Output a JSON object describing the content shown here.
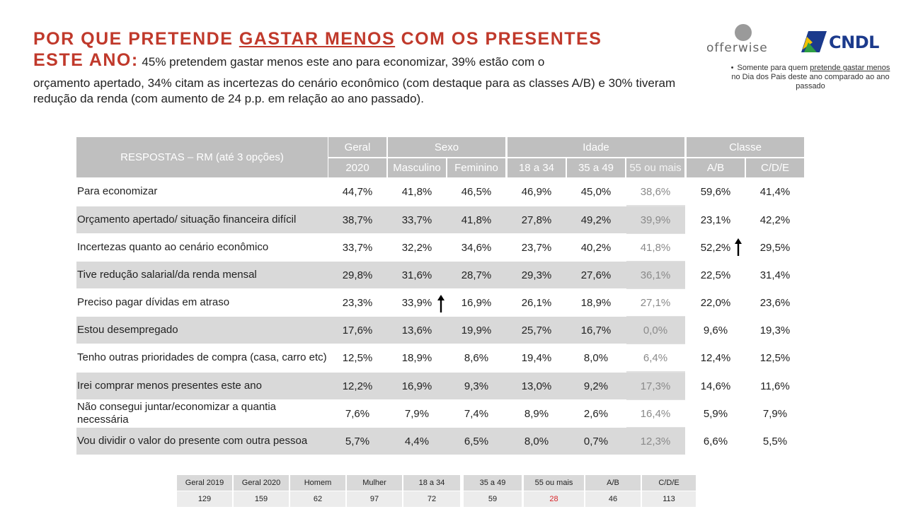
{
  "title": {
    "part1": "POR QUE PRETENDE ",
    "part_underlined": "GASTAR MENOS",
    "part2": " COM OS PRESENTES",
    "line2_bold": "ESTE ANO:",
    "line2_text": " 45% pretendem gastar menos este ano para economizar, 39% estão com o",
    "rest": "orçamento apertado, 34% citam as incertezas do cenário econômico (com destaque para as classes A/B) e 30% tiveram redução da renda (com aumento de 24 p.p. em relação ao ano passado)."
  },
  "logos": {
    "offerwise": "offerwise",
    "cndl": "CNDL"
  },
  "note": {
    "bullet": "•",
    "pre": "Somente para quem ",
    "underlined": "pretende gastar menos",
    "post": " no Dia dos Pais deste ano comparado ao ano passado"
  },
  "table": {
    "respostas_header": "RESPOSTAS – RM (até 3 opções)",
    "groups": [
      "Geral",
      "Sexo",
      "Idade",
      "Classe"
    ],
    "columns": [
      "2020",
      "Masculino",
      "Feminino",
      "18 a 34",
      "35 a 49",
      "55 ou mais",
      "A/B",
      "C/D/E"
    ],
    "rows": [
      {
        "label": "Para economizar",
        "values": [
          "44,7%",
          "41,8%",
          "46,5%",
          "46,9%",
          "45,0%",
          "38,6%",
          "59,6%",
          "41,4%"
        ]
      },
      {
        "label": "Orçamento apertado/ situação financeira difícil",
        "values": [
          "38,7%",
          "33,7%",
          "41,8%",
          "27,8%",
          "49,2%",
          "39,9%",
          "23,1%",
          "42,2%"
        ]
      },
      {
        "label": "Incertezas quanto ao cenário econômico",
        "values": [
          "33,7%",
          "32,2%",
          "34,6%",
          "23,7%",
          "40,2%",
          "41,8%",
          "52,2%",
          "29,5%"
        ]
      },
      {
        "label": "Tive redução salarial/da renda mensal",
        "values": [
          "29,8%",
          "31,6%",
          "28,7%",
          "29,3%",
          "27,6%",
          "36,1%",
          "22,5%",
          "31,4%"
        ]
      },
      {
        "label": "Preciso pagar dívidas em atraso",
        "values": [
          "23,3%",
          "33,9%",
          "16,9%",
          "26,1%",
          "18,9%",
          "27,1%",
          "22,0%",
          "23,6%"
        ]
      },
      {
        "label": "Estou desempregado",
        "values": [
          "17,6%",
          "13,6%",
          "19,9%",
          "25,7%",
          "16,7%",
          "0,0%",
          "9,6%",
          "19,3%"
        ]
      },
      {
        "label": "Tenho outras prioridades de compra (casa, carro etc)",
        "values": [
          "12,5%",
          "18,9%",
          "8,6%",
          "19,4%",
          "8,0%",
          "6,4%",
          "12,4%",
          "12,5%"
        ]
      },
      {
        "label": "Irei comprar menos presentes este ano",
        "values": [
          "12,2%",
          "16,9%",
          "9,3%",
          "13,0%",
          "9,2%",
          "17,3%",
          "14,6%",
          "11,6%"
        ]
      },
      {
        "label": "Não consegui juntar/economizar a quantia necessária",
        "values": [
          "7,6%",
          "7,9%",
          "7,4%",
          "8,9%",
          "2,6%",
          "16,4%",
          "5,9%",
          "7,9%"
        ]
      },
      {
        "label": "Vou dividir o valor do presente com outra pessoa",
        "values": [
          "5,7%",
          "4,4%",
          "6,5%",
          "8,0%",
          "0,7%",
          "12,3%",
          "6,6%",
          "5,5%"
        ]
      }
    ]
  },
  "base_table": {
    "headers": [
      "Geral 2019",
      "Geral 2020",
      "Homem",
      "Mulher",
      "18 a 34",
      "35 a 49",
      "55 ou mais",
      "A/B",
      "C/D/E"
    ],
    "values": [
      "129",
      "159",
      "62",
      "97",
      "72",
      "59",
      "28",
      "46",
      "113"
    ],
    "highlight_color": "#d9262b"
  },
  "colors": {
    "title": "#c0392b",
    "header_bg": "#bfbfbf",
    "row_alt": "#d9d9d9",
    "cndl": "#1b3a8c"
  }
}
